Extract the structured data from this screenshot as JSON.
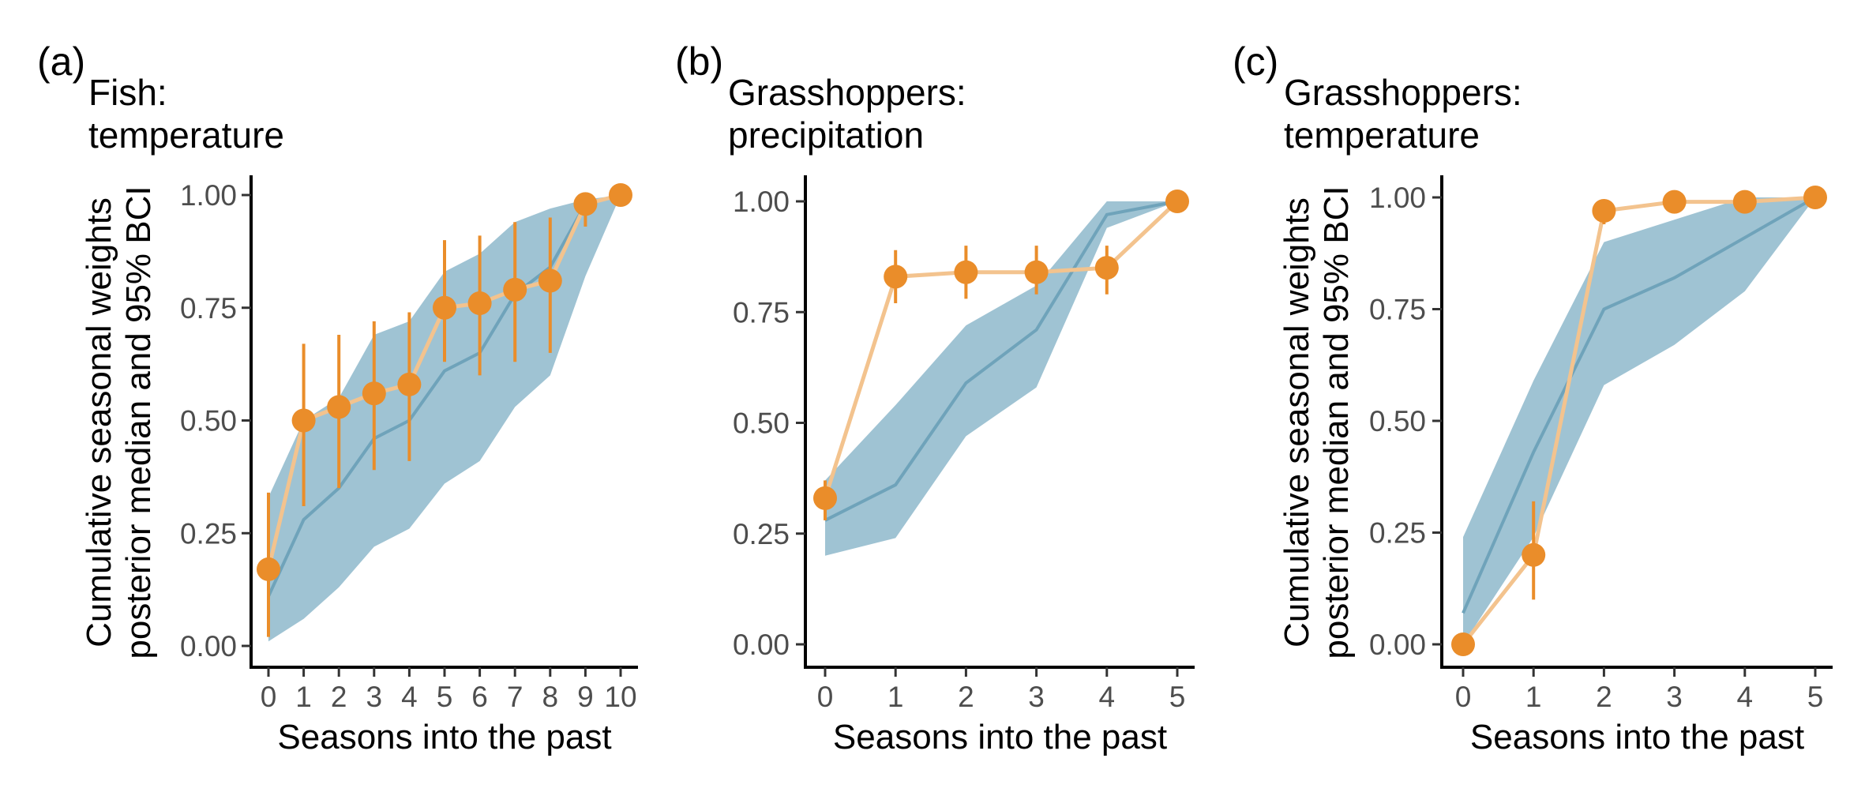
{
  "colors": {
    "band": "#9fc3d3",
    "median_line": "#6fa3ba",
    "point": "#ea8d2a",
    "point_line": "#f3c38e",
    "axis": "#000000"
  },
  "chart_data": [
    {
      "type": "line",
      "panel_label": "(a)",
      "title": [
        "Fish:",
        "temperature"
      ],
      "xlabel": "Seasons into the past",
      "ylabel": [
        "Cumulative seasonal weights",
        "posterior median and 95% BCI"
      ],
      "xlim": [
        0,
        10
      ],
      "ylim": [
        0,
        1
      ],
      "xticks": [
        "0",
        "1",
        "2",
        "3",
        "4",
        "5",
        "6",
        "7",
        "8",
        "9",
        "10"
      ],
      "yticks": [
        "0.00",
        "0.25",
        "0.50",
        "0.75",
        "1.00"
      ],
      "grid": false,
      "x": [
        0,
        1,
        2,
        3,
        4,
        5,
        6,
        7,
        8,
        9,
        10
      ],
      "series": [
        {
          "kind": "band_with_median",
          "median": [
            0.11,
            0.28,
            0.35,
            0.46,
            0.5,
            0.61,
            0.65,
            0.78,
            0.84,
            0.98,
            1.0
          ],
          "lower": [
            0.01,
            0.06,
            0.13,
            0.22,
            0.26,
            0.36,
            0.41,
            0.53,
            0.6,
            0.82,
            1.0
          ],
          "upper": [
            0.33,
            0.5,
            0.55,
            0.69,
            0.72,
            0.83,
            0.87,
            0.94,
            0.97,
            0.99,
            1.0
          ]
        },
        {
          "kind": "points_with_errorbars",
          "values": [
            0.17,
            0.5,
            0.53,
            0.56,
            0.58,
            0.75,
            0.76,
            0.79,
            0.81,
            0.98,
            1.0
          ],
          "lower": [
            0.02,
            0.31,
            0.35,
            0.39,
            0.41,
            0.63,
            0.6,
            0.63,
            0.65,
            0.93,
            1.0
          ],
          "upper": [
            0.34,
            0.67,
            0.69,
            0.72,
            0.74,
            0.9,
            0.91,
            0.94,
            0.95,
            1.0,
            1.0
          ]
        }
      ]
    },
    {
      "type": "line",
      "panel_label": "(b)",
      "title": [
        "Grasshoppers:",
        "precipitation"
      ],
      "xlabel": "Seasons into the past",
      "ylabel": [],
      "xlim": [
        0,
        5
      ],
      "ylim": [
        0,
        1
      ],
      "xticks": [
        "0",
        "1",
        "2",
        "3",
        "4",
        "5"
      ],
      "yticks": [
        "0.00",
        "0.25",
        "0.50",
        "0.75",
        "1.00"
      ],
      "grid": false,
      "x": [
        0,
        1,
        2,
        3,
        4,
        5
      ],
      "series": [
        {
          "kind": "band_with_median",
          "median": [
            0.28,
            0.36,
            0.59,
            0.71,
            0.97,
            1.0
          ],
          "lower": [
            0.2,
            0.24,
            0.47,
            0.58,
            0.94,
            1.0
          ],
          "upper": [
            0.37,
            0.54,
            0.72,
            0.81,
            1.0,
            1.0
          ]
        },
        {
          "kind": "points_with_errorbars",
          "values": [
            0.33,
            0.83,
            0.84,
            0.84,
            0.85,
            1.0
          ],
          "lower": [
            0.28,
            0.77,
            0.78,
            0.79,
            0.79,
            1.0
          ],
          "upper": [
            0.37,
            0.89,
            0.9,
            0.9,
            0.9,
            1.0
          ]
        }
      ]
    },
    {
      "type": "line",
      "panel_label": "(c)",
      "title": [
        "Grasshoppers:",
        "temperature"
      ],
      "xlabel": "Seasons into the past",
      "ylabel": [
        "Cumulative seasonal weights",
        "posterior median and 95% BCI"
      ],
      "xlim": [
        0,
        5
      ],
      "ylim": [
        0,
        1
      ],
      "xticks": [
        "0",
        "1",
        "2",
        "3",
        "4",
        "5"
      ],
      "yticks": [
        "0.00",
        "0.25",
        "0.50",
        "0.75",
        "1.00"
      ],
      "grid": false,
      "x": [
        0,
        1,
        2,
        3,
        4,
        5
      ],
      "series": [
        {
          "kind": "band_with_median",
          "median": [
            0.07,
            0.43,
            0.75,
            0.82,
            0.91,
            1.0
          ],
          "lower": [
            0.0,
            0.24,
            0.58,
            0.67,
            0.79,
            1.0
          ],
          "upper": [
            0.24,
            0.59,
            0.9,
            0.95,
            1.0,
            1.0
          ]
        },
        {
          "kind": "points_with_errorbars",
          "values": [
            0.0,
            0.2,
            0.97,
            0.99,
            0.99,
            1.0
          ],
          "lower": [
            0.0,
            0.1,
            0.94,
            0.98,
            0.98,
            1.0
          ],
          "upper": [
            0.0,
            0.32,
            0.99,
            1.0,
            1.0,
            1.0
          ]
        }
      ]
    }
  ]
}
